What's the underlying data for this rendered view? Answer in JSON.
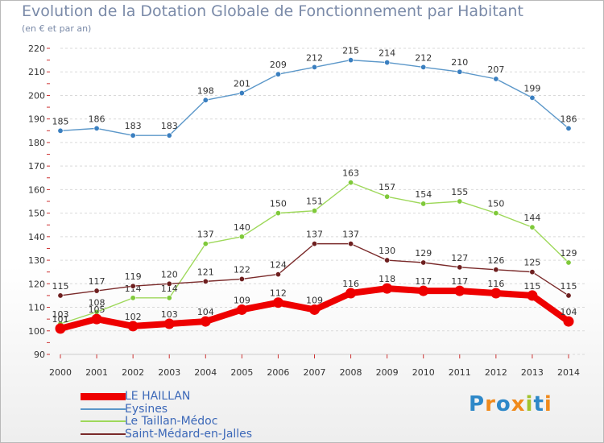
{
  "title": "Evolution de la Dotation Globale de Fonctionnement par Habitant",
  "subtitle": "(en € et par an)",
  "logo": {
    "text": "Proxiti",
    "colors": [
      "#2e88c8",
      "#f08a1c",
      "#2e88c8",
      "#f08a1c",
      "#a2c32b",
      "#2e88c8",
      "#f08a1c"
    ]
  },
  "chart_data": {
    "type": "line",
    "x": [
      "2000",
      "2001",
      "2002",
      "2003",
      "2004",
      "2005",
      "2006",
      "2007",
      "2008",
      "2009",
      "2010",
      "2011",
      "2012",
      "2013",
      "2014"
    ],
    "ylim": [
      90,
      220
    ],
    "yticks": [
      90,
      100,
      110,
      120,
      130,
      140,
      150,
      160,
      170,
      180,
      190,
      200,
      210,
      220
    ],
    "grid": "horizontal-dashed",
    "series": [
      {
        "name": "Eysines",
        "color": "#5b97c9",
        "point": "#3a7fc0",
        "values": [
          185,
          186,
          183,
          183,
          198,
          201,
          209,
          212,
          215,
          214,
          212,
          210,
          207,
          199,
          186
        ],
        "labels": [
          "185",
          "186",
          "183",
          "183",
          "198",
          "201",
          "209",
          "212",
          "215",
          "214",
          "212",
          "210",
          "207",
          "199",
          "186"
        ]
      },
      {
        "name": "Le Taillan-Médoc",
        "color": "#9ed85a",
        "point": "#7fc93a",
        "values": [
          103,
          108,
          114,
          114,
          137,
          140,
          150,
          151,
          163,
          157,
          154,
          155,
          150,
          144,
          129
        ],
        "labels": [
          "103",
          "108",
          "114",
          "114",
          "137",
          "140",
          "150",
          "151",
          "163",
          "157",
          "154",
          "155",
          "150",
          "144",
          "129"
        ]
      },
      {
        "name": "Saint-Médard-en-Jalles",
        "color": "#7a2a2a",
        "point": "#6e1f1f",
        "values": [
          115,
          117,
          119,
          120,
          121,
          122,
          124,
          137,
          137,
          130,
          129,
          127,
          126,
          125,
          115
        ],
        "labels": [
          "115",
          "117",
          "119",
          "120",
          "121",
          "122",
          "124",
          "137",
          "137",
          "130",
          "129",
          "127",
          "126",
          "125",
          "115"
        ]
      },
      {
        "name": "LE HAILLAN",
        "color": "#ee0000",
        "point": "#ee0000",
        "values": [
          101,
          105,
          102,
          103,
          104,
          109,
          112,
          109,
          116,
          118,
          117,
          117,
          116,
          115,
          104
        ],
        "labels": [
          "101",
          "105",
          "102",
          "103",
          "104",
          "109",
          "112",
          "109",
          "116",
          "118",
          "117",
          "117",
          "116",
          "115",
          "104"
        ]
      }
    ],
    "legend": [
      "LE HAILLAN",
      "Eysines",
      "Le Taillan-Médoc",
      "Saint-Médard-en-Jalles"
    ]
  }
}
